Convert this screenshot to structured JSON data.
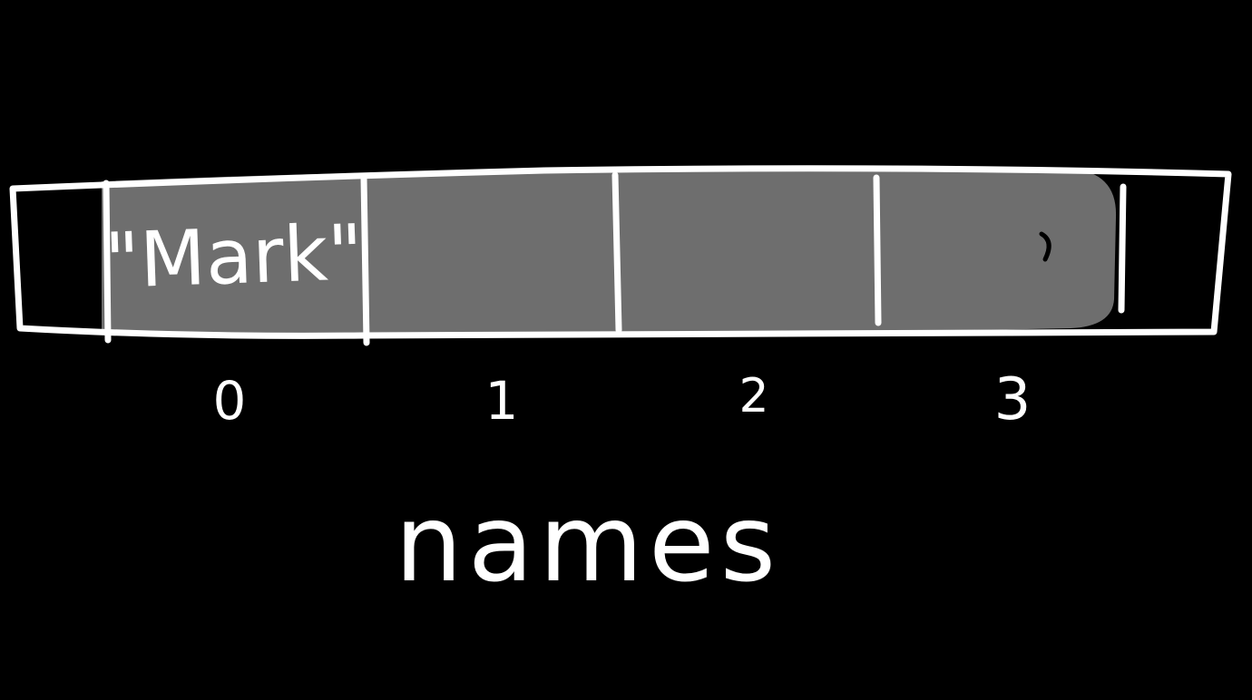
{
  "diagram": {
    "array_name": "names",
    "cells": [
      {
        "index": "0",
        "value": "\"Mark\""
      },
      {
        "index": "1",
        "value": ""
      },
      {
        "index": "2",
        "value": ""
      },
      {
        "index": "3",
        "value": ""
      }
    ],
    "colors": {
      "background": "#000000",
      "ink": "#ffffff",
      "cell_fill": "#6e6e6e"
    }
  }
}
